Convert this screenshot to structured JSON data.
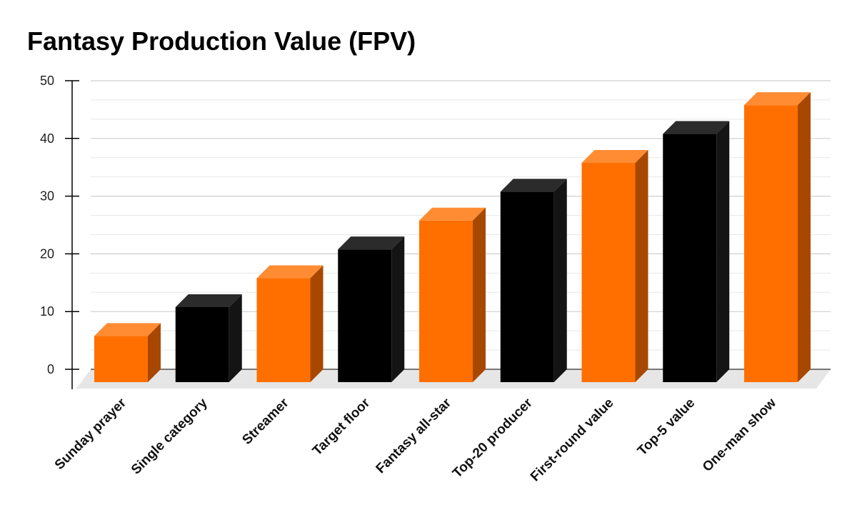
{
  "chart_data": {
    "type": "bar",
    "title": "Fantasy Production Value (FPV)",
    "xlabel": "",
    "ylabel": "",
    "ylim": [
      0,
      50
    ],
    "yticks": [
      0,
      10,
      20,
      30,
      40,
      50
    ],
    "grid": true,
    "legend": "none",
    "three_d": true,
    "categories": [
      "Sunday prayer",
      "Single category",
      "Streamer",
      "Target floor",
      "Fantasy all-star",
      "Top-20 producer",
      "First-round value",
      "Top-5 value",
      "One-man show"
    ],
    "values": [
      8,
      13,
      18,
      23,
      28,
      33,
      38,
      43,
      48
    ],
    "bar_colors": [
      "#ff6f00",
      "#000000",
      "#ff6f00",
      "#000000",
      "#ff6f00",
      "#000000",
      "#ff6f00",
      "#000000",
      "#ff6f00"
    ]
  },
  "colors": {
    "orange_front": "#ff6f00",
    "orange_top": "#ff8c33",
    "orange_side": "#a84800",
    "black_front": "#000000",
    "black_top": "#2b2b2b",
    "black_side": "#141414",
    "grid": "#d9d9d9",
    "floor": "#e6e6e6"
  }
}
